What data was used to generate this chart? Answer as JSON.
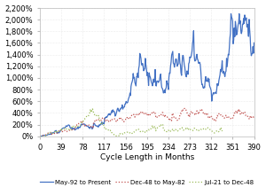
{
  "title": "",
  "xlabel": "Cycle Length in Months",
  "ylabel": "",
  "xlim": [
    0,
    390
  ],
  "ylim": [
    -0.05,
    22
  ],
  "xticks": [
    0,
    39,
    78,
    117,
    156,
    195,
    234,
    273,
    312,
    351,
    390
  ],
  "yticks": [
    0,
    2,
    4,
    6,
    8,
    10,
    12,
    14,
    16,
    18,
    20,
    22
  ],
  "ytick_labels": [
    "0%",
    "200%",
    "400%",
    "600%",
    "800%",
    "1,000%",
    "1,200%",
    "1,400%",
    "1,600%",
    "1,800%",
    "2,000%",
    "2,200%"
  ],
  "series": {
    "may92": {
      "label": "May-92 to Present",
      "color": "#4472C4",
      "style": "solid",
      "linewidth": 0.9
    },
    "dec48": {
      "label": "Dec-48 to May-82",
      "color": "#C0504D",
      "style": "dotted",
      "linewidth": 0.9
    },
    "jul21": {
      "label": "Jul-21 to Dec-48",
      "color": "#9BBB59",
      "style": "dotted",
      "linewidth": 0.9
    }
  },
  "background_color": "#FFFFFF",
  "grid_color": "#D9D9D9",
  "font_size": 6,
  "legend_fontsize": 5.0
}
